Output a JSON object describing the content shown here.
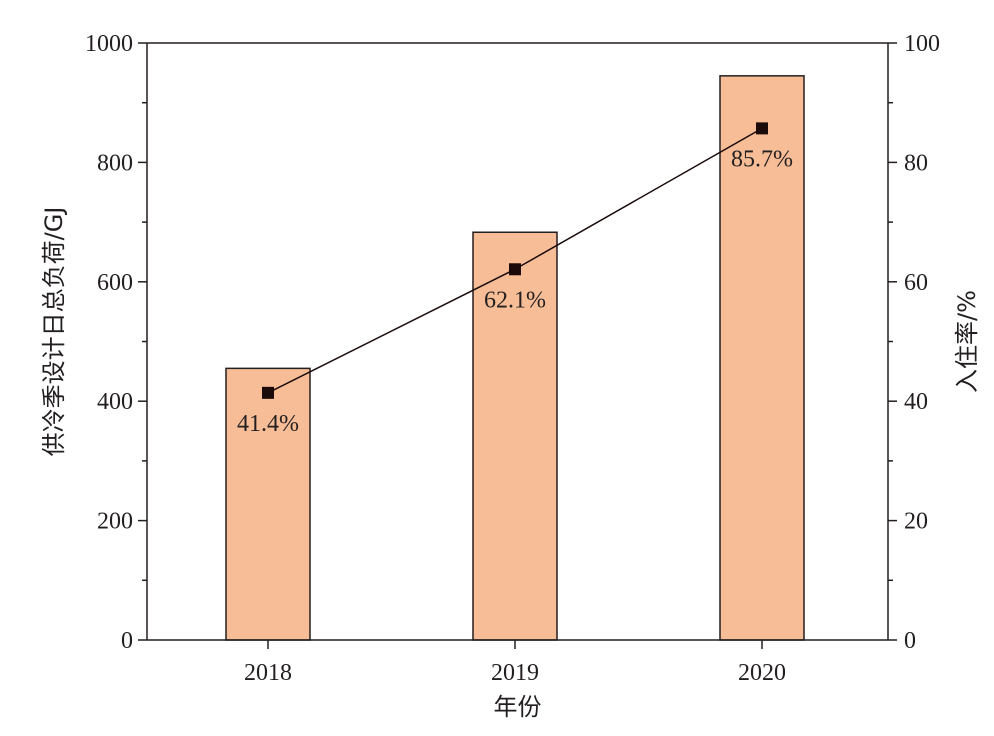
{
  "chart_data": {
    "type": "bar",
    "categories": [
      "2018",
      "2019",
      "2020"
    ],
    "series": [
      {
        "values": [
          455,
          683,
          945
        ],
        "axis": "left",
        "kind": "bar",
        "color": "#f7bd96"
      },
      {
        "values": [
          41.4,
          62.1,
          85.7
        ],
        "axis": "right",
        "kind": "line",
        "color": "#1a0a0a"
      }
    ],
    "data_labels": [
      "41.4%",
      "62.1%",
      "85.7%"
    ],
    "xlabel": "年份",
    "ylabel_left": "供冷季设计日总负荷/GJ",
    "ylabel_right": "入住率/%",
    "ylim_left": [
      0,
      1000
    ],
    "ylim_right": [
      0,
      100
    ],
    "yticks_left": [
      "0",
      "200",
      "400",
      "600",
      "800",
      "1000"
    ],
    "yticks_right": [
      "0",
      "20",
      "40",
      "60",
      "80",
      "100"
    ],
    "grid": false,
    "legend": "none"
  }
}
